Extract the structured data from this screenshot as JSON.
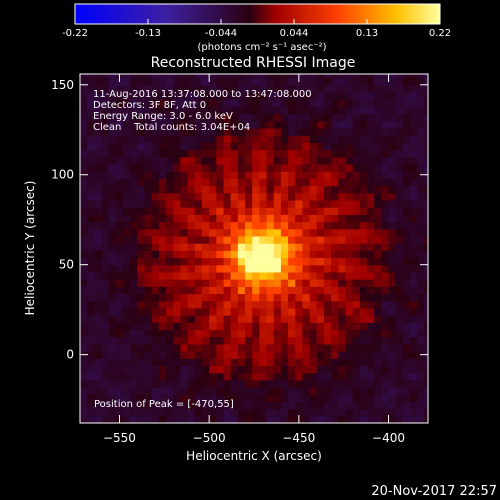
{
  "chart_data": {
    "type": "heatmap",
    "title": "Reconstructed RHESSI Image",
    "xlabel": "Heliocentric X (arcsec)",
    "ylabel": "Heliocentric Y (arcsec)",
    "xlim": [
      -572,
      -378
    ],
    "ylim": [
      -38,
      156
    ],
    "xticks": [
      -550,
      -500,
      -450,
      -400
    ],
    "yticks": [
      0,
      50,
      100,
      150
    ],
    "colorbar": {
      "ticks": [
        "-0.22",
        "-0.13",
        "-0.044",
        "0.044",
        "0.13",
        "0.22"
      ],
      "range": [
        -0.22,
        0.22
      ],
      "unit_label": "(photons cm⁻² s⁻¹ asec⁻²)"
    },
    "annotations": [
      "11-Aug-2016 13:37:08.000 to 13:47:08.000",
      "Detectors: 3F 8F, Att 0",
      "Energy Range: 3.0 - 6.0 keV",
      "Clean    Total counts: 3.04E+04"
    ],
    "peak": {
      "label": "Position of Peak = [-470,55]",
      "x": -470,
      "y": 55
    },
    "timestamp": "20-Nov-2017 22:57"
  }
}
